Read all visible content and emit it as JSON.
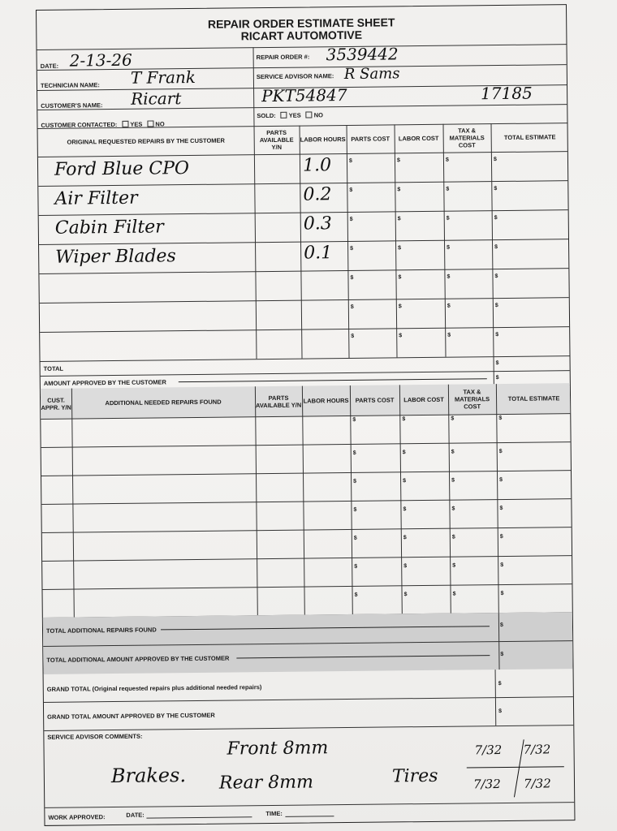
{
  "header": {
    "title": "REPAIR ORDER ESTIMATE SHEET",
    "company": "RICART AUTOMOTIVE"
  },
  "fields": {
    "date_label": "DATE:",
    "date_value": "2-13-26",
    "repair_order_label": "REPAIR ORDER #:",
    "repair_order_value": "3539442",
    "technician_label": "TECHNICIAN NAME:",
    "technician_value": "T Frank",
    "service_advisor_label": "SERVICE ADVISOR NAME:",
    "service_advisor_value": "R Sams",
    "customer_label": "CUSTOMER'S NAME:",
    "customer_value": "Ricart",
    "vehicle_value": "PKT54847",
    "extra_value": "17185",
    "contacted_label": "CUSTOMER CONTACTED:",
    "sold_label": "SOLD:",
    "yes": "YES",
    "no": "NO"
  },
  "table1": {
    "headers": [
      "ORIGINAL REQUESTED REPAIRS BY THE CUSTOMER",
      "PARTS AVAILABLE Y/N",
      "LABOR HOURS",
      "PARTS COST",
      "LABOR COST",
      "TAX & MATERIALS COST",
      "TOTAL ESTIMATE"
    ],
    "rows": [
      {
        "repair": "Ford Blue CPO",
        "hours": "1.0"
      },
      {
        "repair": "Air Filter",
        "hours": "0.2"
      },
      {
        "repair": "Cabin Filter",
        "hours": "0.3"
      },
      {
        "repair": "Wiper Blades",
        "hours": "0.1"
      },
      {
        "repair": "",
        "hours": ""
      },
      {
        "repair": "",
        "hours": ""
      },
      {
        "repair": "",
        "hours": ""
      }
    ],
    "total_label": "TOTAL",
    "approved_label": "AMOUNT APPROVED BY THE CUSTOMER"
  },
  "table2": {
    "headers": [
      "CUST. APPR. Y/N",
      "ADDITIONAL NEEDED REPAIRS FOUND",
      "PARTS AVAILABLE Y/N",
      "LABOR HOURS",
      "PARTS COST",
      "LABOR COST",
      "TAX & MATERIALS COST",
      "TOTAL ESTIMATE"
    ],
    "row_count": 7,
    "total_found_label": "TOTAL ADDITIONAL REPAIRS FOUND",
    "total_approved_label": "TOTAL ADDITIONAL AMOUNT APPROVED BY THE CUSTOMER"
  },
  "totals": {
    "grand_total_label": "GRAND TOTAL (Original requested repairs plus additional needed repairs)",
    "grand_total_approved_label": "GRAND TOTAL AMOUNT APPROVED BY THE CUSTOMER"
  },
  "comments": {
    "label": "SERVICE ADVISOR COMMENTS:",
    "brakes": "Brakes.",
    "front": "Front 8mm",
    "rear": "Rear 8mm",
    "tires": "Tires",
    "tread": [
      "7/32",
      "7/32",
      "7/32",
      "7/32"
    ]
  },
  "footer": {
    "work_approved": "WORK APPROVED:",
    "date": "DATE:",
    "time": "TIME:"
  },
  "dollar": "$"
}
